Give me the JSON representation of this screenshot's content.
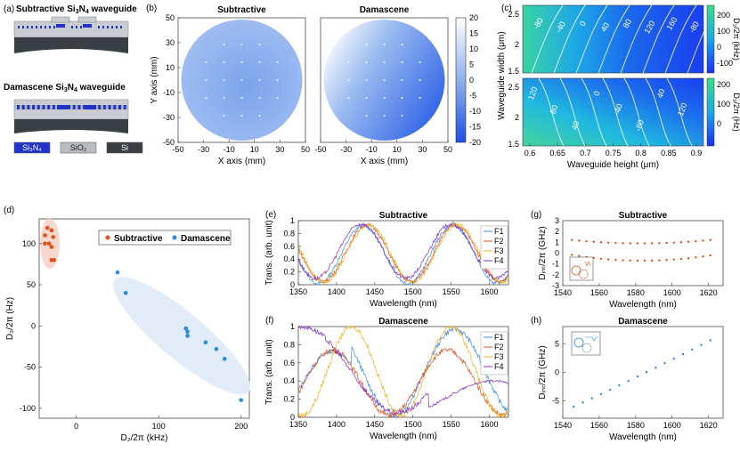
{
  "panel_a": {
    "label": "(a)",
    "title_sub": "Subtractive Si",
    "title_sub_sub3": "3",
    "title_sub_mid": "N",
    "title_sub_sub4": "4",
    "title_sub_end": " waveguide",
    "title_dam": "Damascene Si",
    "title_dam_sub3": "3",
    "title_dam_mid": "N",
    "title_dam_sub4": "4",
    "title_dam_end": " waveguide",
    "legend": [
      {
        "label": "Si₃N₄",
        "color": "#2233cc"
      },
      {
        "label": "SiO₂",
        "color": "#b9bcc0"
      },
      {
        "label": "Si",
        "color": "#3a3f44"
      }
    ]
  },
  "chart_data": [
    {
      "id": "b",
      "type": "heatmap",
      "label": "(b)",
      "titles": [
        "Subtractive",
        "Damascene"
      ],
      "xlabel": "X axis (mm)",
      "ylabel": "Y axis (mm)",
      "xticks": [
        -50,
        -30,
        -10,
        10,
        30,
        50
      ],
      "yticks": [
        50,
        30,
        10,
        -10,
        -30,
        -50
      ],
      "colorbar_ticks": [
        20,
        15,
        10,
        5,
        0,
        -5,
        -10,
        -15,
        -20
      ],
      "clim": [
        -20,
        20
      ]
    },
    {
      "id": "c",
      "type": "heatmap",
      "label": "(c)",
      "xlabel": "Waveguide height (μm)",
      "ylabel": "Waveguide width (μm)",
      "xticks": [
        "0.6",
        "0.65",
        "0.7",
        "0.75",
        "0.8",
        "0.85",
        "0.9"
      ],
      "yticks_top": [
        "2.5",
        "2",
        "1.5"
      ],
      "yticks_bottom": [
        "2.5",
        "2",
        "1.5"
      ],
      "cbar_top_ticks": [
        "200",
        "100",
        "0",
        "-100"
      ],
      "cbar_bottom_ticks": [
        "200",
        "100",
        "0"
      ],
      "cbar_top_label": "D₂/2π (kHz)",
      "cbar_bottom_label": "D₃/2π (Hz)",
      "contours_top": [
        "-80",
        "-40",
        "0",
        "40",
        "80",
        "120",
        "160",
        "-80",
        "-40",
        "0",
        "40",
        "80",
        "120",
        "160",
        "200"
      ],
      "contours_bottom": [
        "120",
        "80",
        "40",
        "0",
        "-40",
        "-80",
        "40",
        "120"
      ]
    },
    {
      "id": "d",
      "type": "scatter",
      "label": "(d)",
      "xlabel": "D₂/2π (kHz)",
      "ylabel": "D₃/2π (Hz)",
      "xlim": [
        -45,
        210
      ],
      "ylim": [
        -112,
        130
      ],
      "xticks": [
        "0",
        "100",
        "200"
      ],
      "yticks": [
        "100",
        "50",
        "0",
        "-50",
        "-100"
      ],
      "series": [
        {
          "name": "Subtractive",
          "color": "#e0501c",
          "points": [
            [
              -35,
              119
            ],
            [
              -30,
              116
            ],
            [
              -28,
              108
            ],
            [
              -38,
              110
            ],
            [
              -33,
              100
            ],
            [
              -38,
              100
            ],
            [
              -30,
              96
            ],
            [
              -27,
              80
            ],
            [
              -30,
              80
            ]
          ]
        },
        {
          "name": "Damascene",
          "color": "#2a8be0",
          "points": [
            [
              50,
              65
            ],
            [
              60,
              40
            ],
            [
              133,
              -3
            ],
            [
              135,
              -7
            ],
            [
              135,
              -12
            ],
            [
              157,
              -20
            ],
            [
              170,
              -28
            ],
            [
              180,
              -40
            ],
            [
              200,
              -90
            ]
          ]
        }
      ]
    },
    {
      "id": "e",
      "type": "line",
      "label": "(e)",
      "title": "Subtractive",
      "xlabel": "Wavelength (nm)",
      "ylabel": "Trans. (arb. unit)",
      "xlim": [
        1350,
        1625
      ],
      "ylim": [
        0,
        1
      ],
      "xticks": [
        "1350",
        "1400",
        "1450",
        "1500",
        "1550",
        "1600"
      ],
      "yticks": [
        "1",
        "0.8",
        "0.6",
        "0.4",
        "0.2",
        "0"
      ],
      "series": [
        {
          "name": "F1",
          "color": "#3b8de0",
          "center": 1435,
          "shift": 0
        },
        {
          "name": "F2",
          "color": "#e0501c",
          "center": 1438,
          "shift": 3
        },
        {
          "name": "F3",
          "color": "#edb21e",
          "center": 1440,
          "shift": 5
        },
        {
          "name": "F4",
          "color": "#7e2fbf",
          "center": 1433,
          "shift": -2
        }
      ]
    },
    {
      "id": "f",
      "type": "line",
      "label": "(f)",
      "title": "Damascene",
      "xlabel": "Wavelength (nm)",
      "ylabel": "Trans. (arb. unit)",
      "xlim": [
        1350,
        1625
      ],
      "ylim": [
        0,
        1
      ],
      "xticks": [
        "1350",
        "1400",
        "1450",
        "1500",
        "1550",
        "1600"
      ],
      "yticks": [
        "1",
        "0.8",
        "0.6",
        "0.4",
        "0.2",
        "0"
      ],
      "series": [
        {
          "name": "F1",
          "color": "#3b8de0"
        },
        {
          "name": "F2",
          "color": "#e0501c"
        },
        {
          "name": "F3",
          "color": "#edb21e"
        },
        {
          "name": "F4",
          "color": "#7e2fbf"
        }
      ]
    },
    {
      "id": "g",
      "type": "scatter",
      "label": "(g)",
      "title": "Subtractive",
      "xlabel": "Wavelength (nm)",
      "ylabel": "Dᵢₙₜ/2π (GHz)",
      "xlim": [
        1540,
        1628
      ],
      "ylim": [
        -3,
        3
      ],
      "xticks": [
        "1540",
        "1560",
        "1580",
        "1600",
        "1620"
      ],
      "yticks": [
        "3",
        "2",
        "1",
        "0",
        "-1",
        "-2",
        "-3"
      ],
      "color": "#e0501c"
    },
    {
      "id": "h",
      "type": "scatter",
      "label": "(h)",
      "title": "Damascene",
      "xlabel": "Wavelength (nm)",
      "ylabel": "Dᵢₙₜ/2π (GHz)",
      "xlim": [
        1540,
        1628
      ],
      "ylim": [
        -8,
        8
      ],
      "xticks": [
        "1540",
        "1560",
        "1580",
        "1600",
        "1620"
      ],
      "yticks": [
        "5",
        "0",
        "-5"
      ],
      "color": "#2a8be0"
    }
  ]
}
